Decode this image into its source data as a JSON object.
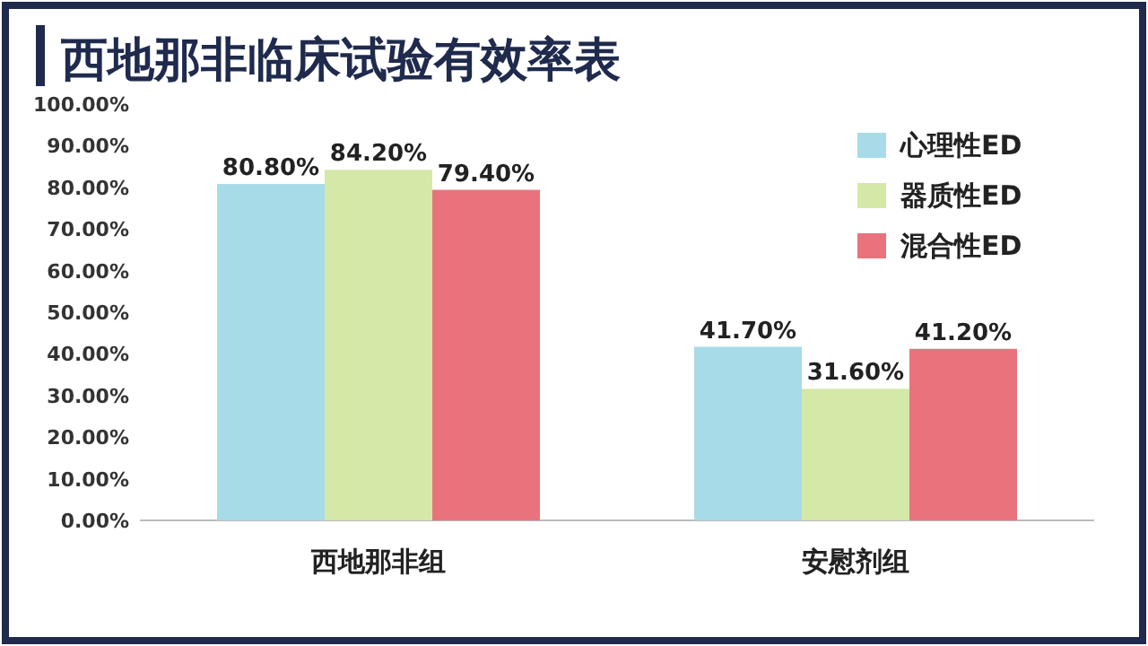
{
  "chart_data": {
    "type": "bar",
    "title": "西地那非临床试验有效率表",
    "categories": [
      "西地那非组",
      "安慰剂组"
    ],
    "series": [
      {
        "name": "心理性ED",
        "color": "#a8dbe8",
        "values": [
          80.8,
          41.7
        ],
        "value_labels": [
          "80.80%",
          "41.70%"
        ]
      },
      {
        "name": "器质性ED",
        "color": "#d4e8a8",
        "values": [
          84.2,
          31.6
        ],
        "value_labels": [
          "84.20%",
          "31.60%"
        ]
      },
      {
        "name": "混合性ED",
        "color": "#e8737c",
        "values": [
          79.4,
          41.2
        ],
        "value_labels": [
          "79.40%",
          "41.20%"
        ]
      }
    ],
    "ylim": [
      0,
      100
    ],
    "yticks": [
      {
        "value": 0,
        "label": "0.00%"
      },
      {
        "value": 10,
        "label": "10.00%"
      },
      {
        "value": 20,
        "label": "20.00%"
      },
      {
        "value": 30,
        "label": "30.00%"
      },
      {
        "value": 40,
        "label": "40.00%"
      },
      {
        "value": 50,
        "label": "50.00%"
      },
      {
        "value": 60,
        "label": "60.00%"
      },
      {
        "value": 70,
        "label": "70.00%"
      },
      {
        "value": 80,
        "label": "80.00%"
      },
      {
        "value": 90,
        "label": "90.00%"
      },
      {
        "value": 100,
        "label": "100.00%"
      }
    ],
    "legend": "top right",
    "grid": false
  }
}
